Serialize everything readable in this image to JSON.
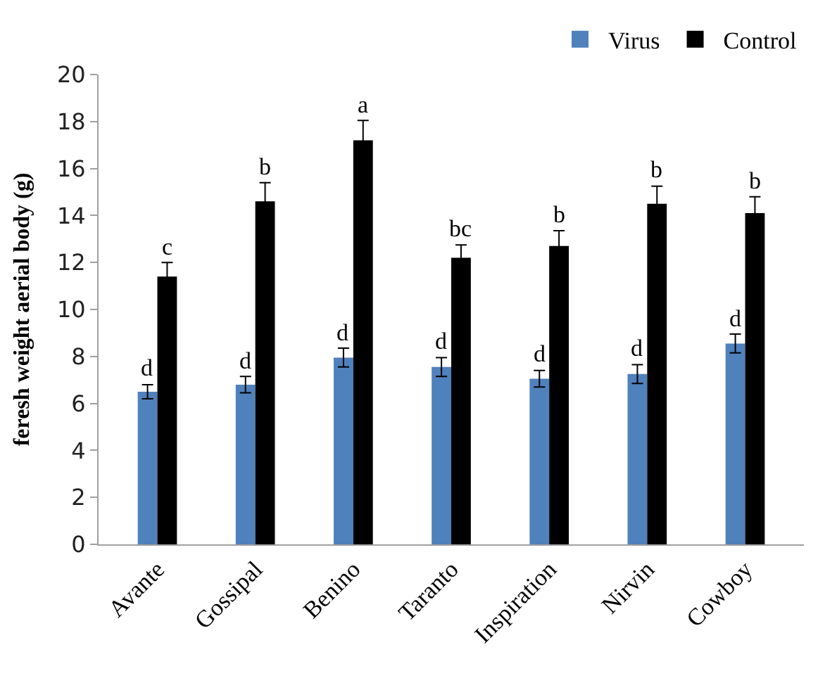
{
  "chart_data": {
    "type": "bar",
    "ylabel": "feresh weight aerial body (g)",
    "categories": [
      "Avante",
      "Gossipal",
      "Benino",
      "Taranto",
      "Inspiration",
      "Nirvin",
      "Cowboy"
    ],
    "series": [
      {
        "name": "Virus",
        "color": "#4f81bd",
        "values": [
          6.5,
          6.8,
          7.95,
          7.55,
          7.05,
          7.25,
          8.55
        ],
        "errors": [
          0.3,
          0.35,
          0.4,
          0.4,
          0.35,
          0.4,
          0.4
        ],
        "value_labels": [
          "d",
          "d",
          "d",
          "d",
          "d",
          "d",
          "d"
        ]
      },
      {
        "name": "Control",
        "color": "#000000",
        "values": [
          11.4,
          14.6,
          17.2,
          12.2,
          12.7,
          14.5,
          14.1
        ],
        "errors": [
          0.6,
          0.8,
          0.85,
          0.55,
          0.65,
          0.75,
          0.7
        ],
        "value_labels": [
          "c",
          "b",
          "a",
          "bc",
          "b",
          "b",
          "b"
        ]
      }
    ],
    "ylim": [
      0,
      20
    ],
    "yticks": [
      0,
      2,
      4,
      6,
      8,
      10,
      12,
      14,
      16,
      18,
      20
    ],
    "legend": "top right"
  }
}
